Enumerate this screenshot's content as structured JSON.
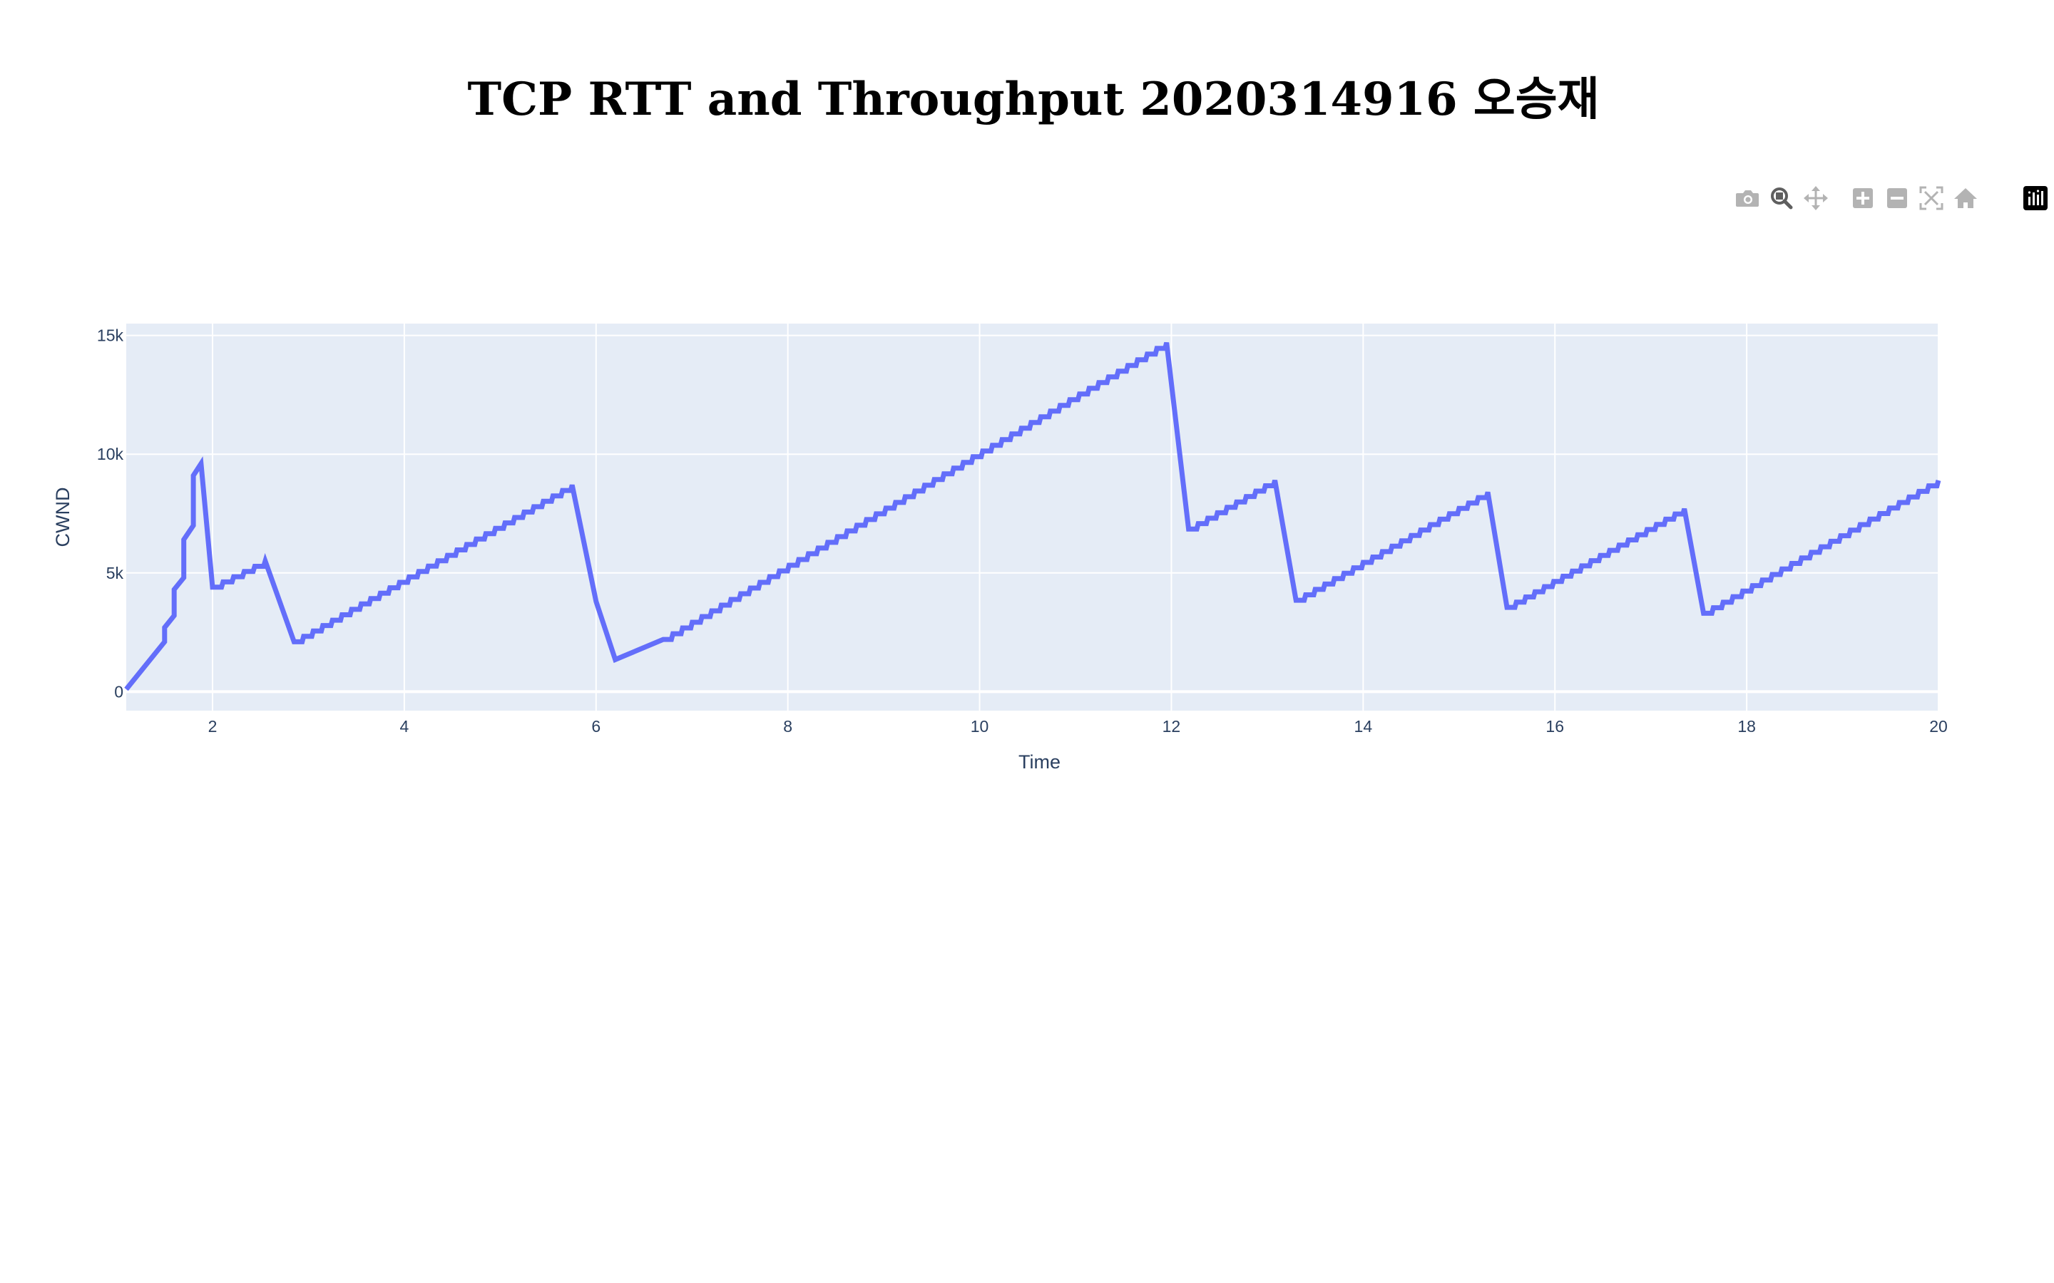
{
  "page": {
    "title": "TCP RTT and Throughput 2020314916 오승재"
  },
  "modebar": {
    "buttons": [
      {
        "name": "camera-icon",
        "active": false
      },
      {
        "name": "zoom-icon",
        "active": true
      },
      {
        "name": "pan-icon",
        "active": false
      },
      {
        "name": "zoom-in-icon",
        "active": false
      },
      {
        "name": "zoom-out-icon",
        "active": false
      },
      {
        "name": "autoscale-icon",
        "active": false
      },
      {
        "name": "home-icon",
        "active": false
      },
      {
        "name": "plotly-logo-icon",
        "active": false
      }
    ],
    "colors": {
      "inactive": "#b3b3b3",
      "active": "#5f5f5f",
      "logo": "#000000"
    }
  },
  "chart_data": {
    "type": "line",
    "title": "TCP RTT and Throughput 2020314916 오승재",
    "xlabel": "Time",
    "ylabel": "CWND",
    "xlim": [
      1.1,
      20
    ],
    "ylim": [
      -800,
      15500
    ],
    "x_ticks": [
      2,
      4,
      6,
      8,
      10,
      12,
      14,
      16,
      18,
      20
    ],
    "y_ticks": [
      0,
      5000,
      10000,
      15000
    ],
    "y_tick_labels": [
      "0",
      "5k",
      "10k",
      "15k"
    ],
    "grid": true,
    "line_color": "#636efa",
    "plot_bg": "#e5ecf6",
    "grid_color": "#ffffff",
    "segments": [
      {
        "x0": 1.1,
        "y0": 100,
        "x1": 1.5,
        "y1": 2100,
        "step": false
      },
      {
        "x0": 1.5,
        "y0": 2100,
        "x1": 1.5,
        "y1": 2700,
        "step": false
      },
      {
        "x0": 1.5,
        "y0": 2700,
        "x1": 1.6,
        "y1": 3200,
        "step": false
      },
      {
        "x0": 1.6,
        "y0": 3200,
        "x1": 1.6,
        "y1": 4300,
        "step": false
      },
      {
        "x0": 1.6,
        "y0": 4300,
        "x1": 1.7,
        "y1": 4800,
        "step": false
      },
      {
        "x0": 1.7,
        "y0": 4800,
        "x1": 1.7,
        "y1": 6400,
        "step": false
      },
      {
        "x0": 1.7,
        "y0": 6400,
        "x1": 1.8,
        "y1": 7000,
        "step": false
      },
      {
        "x0": 1.8,
        "y0": 7000,
        "x1": 1.8,
        "y1": 9100,
        "step": false
      },
      {
        "x0": 1.8,
        "y0": 9100,
        "x1": 1.88,
        "y1": 9600,
        "step": false
      },
      {
        "x0": 1.88,
        "y0": 9600,
        "x1": 2.0,
        "y1": 4400,
        "step": false
      },
      {
        "x0": 2.0,
        "y0": 4400,
        "x1": 2.55,
        "y1": 5500,
        "step": true
      },
      {
        "x0": 2.55,
        "y0": 5500,
        "x1": 2.85,
        "y1": 2100,
        "step": false
      },
      {
        "x0": 2.85,
        "y0": 2100,
        "x1": 5.75,
        "y1": 8700,
        "step": true
      },
      {
        "x0": 5.75,
        "y0": 8700,
        "x1": 6.0,
        "y1": 3800,
        "step": false
      },
      {
        "x0": 6.0,
        "y0": 3800,
        "x1": 6.2,
        "y1": 1350,
        "step": false
      },
      {
        "x0": 6.2,
        "y0": 1350,
        "x1": 6.7,
        "y1": 2200,
        "step": false
      },
      {
        "x0": 6.7,
        "y0": 2200,
        "x1": 11.95,
        "y1": 14700,
        "step": true
      },
      {
        "x0": 11.95,
        "y0": 14700,
        "x1": 12.18,
        "y1": 6850,
        "step": false
      },
      {
        "x0": 12.18,
        "y0": 6850,
        "x1": 13.08,
        "y1": 8900,
        "step": true
      },
      {
        "x0": 13.08,
        "y0": 8900,
        "x1": 13.3,
        "y1": 3850,
        "step": false
      },
      {
        "x0": 13.3,
        "y0": 3850,
        "x1": 15.3,
        "y1": 8400,
        "step": true
      },
      {
        "x0": 15.3,
        "y0": 8400,
        "x1": 15.5,
        "y1": 3550,
        "step": false
      },
      {
        "x0": 15.5,
        "y0": 3550,
        "x1": 17.35,
        "y1": 7700,
        "step": true
      },
      {
        "x0": 17.35,
        "y0": 7700,
        "x1": 17.55,
        "y1": 3300,
        "step": false
      },
      {
        "x0": 17.55,
        "y0": 3300,
        "x1": 20.0,
        "y1": 8900,
        "step": true
      }
    ]
  }
}
